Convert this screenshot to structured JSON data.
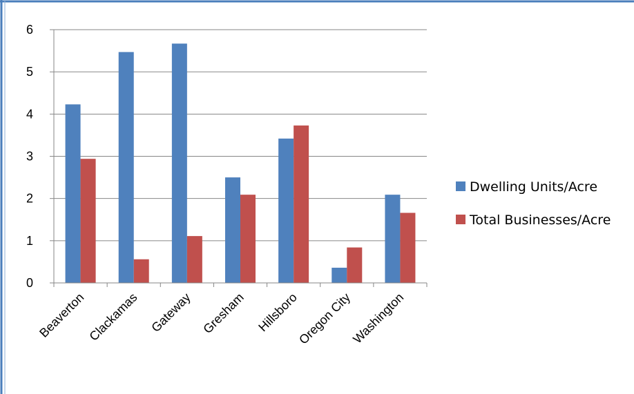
{
  "chart_data": {
    "type": "bar",
    "title": "",
    "xlabel": "",
    "ylabel": "",
    "categories": [
      "Beaverton",
      "Clackamas",
      "Gateway",
      "Gresham",
      "Hillsboro",
      "Oregon City",
      "Washington"
    ],
    "series": [
      {
        "name": "Dwelling Units/Acre",
        "color": "#4F81BD",
        "values": [
          4.23,
          5.47,
          5.67,
          2.5,
          3.42,
          0.36,
          2.09
        ]
      },
      {
        "name": "Total Businesses/Acre",
        "color": "#C0504D",
        "values": [
          2.94,
          0.56,
          1.11,
          2.09,
          3.73,
          0.84,
          1.66
        ]
      }
    ],
    "ylim": [
      0,
      6
    ],
    "yticks": [
      0,
      1,
      2,
      3,
      4,
      5,
      6
    ],
    "grid": true,
    "legend_position": "right",
    "frame_color": "#4A7EBB"
  }
}
